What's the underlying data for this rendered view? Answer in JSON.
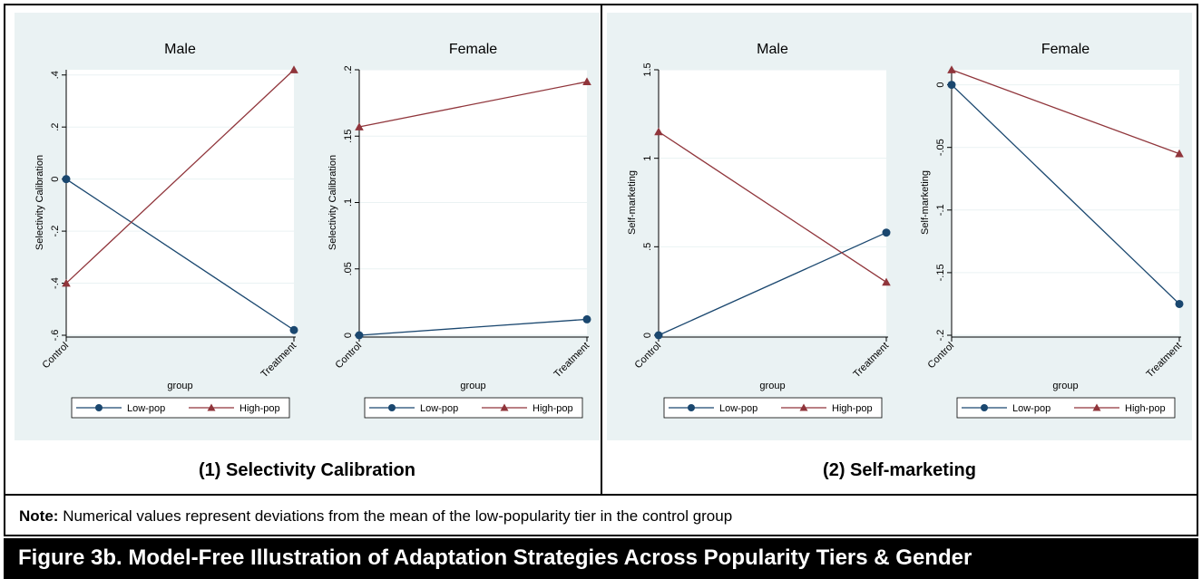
{
  "figure": {
    "title": "Figure 3b. Model-Free Illustration of Adaptation Strategies Across Popularity Tiers & Gender",
    "note_label": "Note:",
    "note_text": "Numerical values represent deviations from the mean of the low-popularity tier in the control group"
  },
  "panels": [
    {
      "caption": "(1) Selectivity Calibration"
    },
    {
      "caption": "(2) Self-marketing"
    }
  ],
  "colors": {
    "low_pop": "#1a476f",
    "high_pop": "#90353b",
    "panel_bg": "#eaf2f3",
    "plot_bg": "#ffffff",
    "grid": "#eaf2f3"
  },
  "chart_data": [
    {
      "type": "line",
      "panel": 0,
      "title": "Male",
      "xlabel": "group",
      "ylabel": "Selectivity Calibration",
      "categories": [
        "Control",
        "Treatment"
      ],
      "ylim": [
        -0.6,
        0.42
      ],
      "yticks": [
        -0.6,
        -0.4,
        -0.2,
        0,
        0.2,
        0.4
      ],
      "ytick_labels": [
        "-.6",
        "-.4",
        "-.2",
        "0",
        ".2",
        ".4"
      ],
      "grid": true,
      "legend": "bottom",
      "series": [
        {
          "name": "Low-pop",
          "marker": "circle",
          "values": [
            0,
            -0.58
          ]
        },
        {
          "name": "High-pop",
          "marker": "triangle",
          "values": [
            -0.4,
            0.42
          ]
        }
      ]
    },
    {
      "type": "line",
      "panel": 0,
      "title": "Female",
      "xlabel": "group",
      "ylabel": "Selectivity Calibration",
      "categories": [
        "Control",
        "Treatment"
      ],
      "ylim": [
        0,
        0.2
      ],
      "yticks": [
        0,
        0.05,
        0.1,
        0.15,
        0.2
      ],
      "ytick_labels": [
        "0",
        ".05",
        ".1",
        ".15",
        ".2"
      ],
      "grid": true,
      "legend": "bottom",
      "series": [
        {
          "name": "Low-pop",
          "marker": "circle",
          "values": [
            0,
            0.012
          ]
        },
        {
          "name": "High-pop",
          "marker": "triangle",
          "values": [
            0.157,
            0.191
          ]
        }
      ]
    },
    {
      "type": "line",
      "panel": 1,
      "title": "Male",
      "xlabel": "group",
      "ylabel": "Self-marketing",
      "categories": [
        "Control",
        "Treatment"
      ],
      "ylim": [
        0,
        1.5
      ],
      "yticks": [
        0,
        0.5,
        1,
        1.5
      ],
      "ytick_labels": [
        "0",
        ".5",
        "1",
        "1.5"
      ],
      "grid": true,
      "legend": "bottom",
      "series": [
        {
          "name": "Low-pop",
          "marker": "circle",
          "values": [
            0,
            0.58
          ]
        },
        {
          "name": "High-pop",
          "marker": "triangle",
          "values": [
            1.15,
            0.3
          ]
        }
      ]
    },
    {
      "type": "line",
      "panel": 1,
      "title": "Female",
      "xlabel": "group",
      "ylabel": "Self-marketing",
      "categories": [
        "Control",
        "Treatment"
      ],
      "ylim": [
        -0.2,
        0.012
      ],
      "yticks": [
        -0.2,
        -0.15,
        -0.1,
        -0.05,
        0
      ],
      "ytick_labels": [
        "-.2",
        "-.15",
        "-.1",
        "-.05",
        "0"
      ],
      "grid": true,
      "legend": "bottom",
      "series": [
        {
          "name": "Low-pop",
          "marker": "circle",
          "values": [
            0,
            -0.175
          ]
        },
        {
          "name": "High-pop",
          "marker": "triangle",
          "values": [
            0.012,
            -0.055
          ]
        }
      ]
    }
  ]
}
